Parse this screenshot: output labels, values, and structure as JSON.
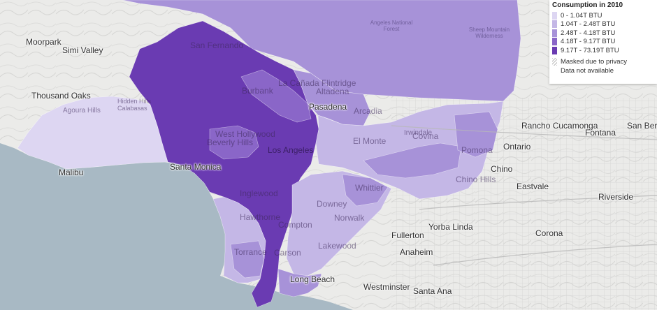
{
  "legend": {
    "title": "Consumption in 2010",
    "classes": [
      {
        "label": "0 - 1.04T BTU",
        "color": "#ddd6f2"
      },
      {
        "label": "1.04T - 2.48T BTU",
        "color": "#c4b7e6"
      },
      {
        "label": "2.48T - 4.18T BTU",
        "color": "#a792d8"
      },
      {
        "label": "4.18T - 9.17T BTU",
        "color": "#8a66c8"
      },
      {
        "label": "9.17T - 73.19T BTU",
        "color": "#6a3bb2"
      }
    ],
    "masked_label": "Masked due to privacy",
    "na_label": "Data not available"
  },
  "places": {
    "moorpark": "Moorpark",
    "simi_valley": "Simi Valley",
    "thousand_oaks": "Thousand Oaks",
    "agoura_hills": "Agoura Hills",
    "hidden_hills": "Hidden Hills",
    "calabasas": "Calabasas",
    "malibu": "Malibu",
    "san_fernando": "San Fernando",
    "burbank": "Burbank",
    "la_canada_flintridge": "La Cañada Flintridge",
    "altadena": "Altadena",
    "pasadena": "Pasadena",
    "arcadia": "Arcadia",
    "west_hollywood": "West Hollywood",
    "beverly_hills": "Beverly Hills",
    "los_angeles": "Los Angeles",
    "el_monte": "El Monte",
    "santa_monica": "Santa Monica",
    "inglewood": "Inglewood",
    "hawthorne": "Hawthorne",
    "compton": "Compton",
    "downey": "Downey",
    "norwalk": "Norwalk",
    "whittier": "Whittier",
    "torrance": "Torrance",
    "carson": "Carson",
    "lakewood": "Lakewood",
    "long_beach": "Long Beach",
    "irwindale": "Irwindale",
    "covina": "Covina",
    "pomona": "Pomona",
    "chino": "Chino",
    "chino_hills": "Chino Hills",
    "ontario": "Ontario",
    "rancho_cucamonga": "Rancho Cucamonga",
    "fontana": "Fontana",
    "san_bernardino": "San Ber",
    "eastvale": "Eastvale",
    "riverside": "Riverside",
    "corona": "Corona",
    "fullerton": "Fullerton",
    "yorba_linda": "Yorba Linda",
    "anaheim": "Anaheim",
    "westminster": "Westminster",
    "santa_ana": "Santa Ana",
    "angeles_forest": "Angeles National Forest",
    "sheep_mountain": "Sheep Mountain Wilderness"
  }
}
